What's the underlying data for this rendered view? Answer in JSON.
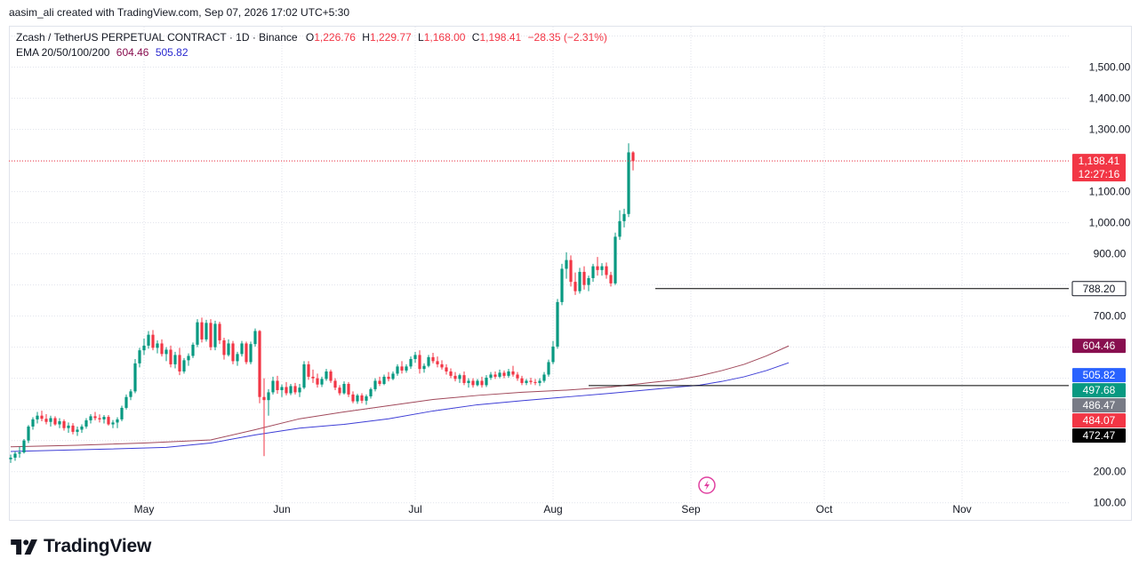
{
  "header": {
    "credit": "aasim_ali created with TradingView.com, Sep 07, 2026 17:02 UTC+5:30"
  },
  "legend": {
    "symbol": "Zcash / TetherUS PERPETUAL CONTRACT · 1D · Binance",
    "o_label": "O",
    "o_value": "1,226.76",
    "h_label": "H",
    "h_value": "1,229.77",
    "l_label": "L",
    "l_value": "1,168.00",
    "c_label": "C",
    "c_value": "1,198.41",
    "change": "−28.35 (−2.31%)",
    "ema_label": "EMA 20/50/100/200",
    "ema_val1": "604.46",
    "ema_val2": "505.82"
  },
  "footer": {
    "brand": "TradingView"
  },
  "chart_data": {
    "type": "candlestick",
    "y_ticks": [
      "1,500.00",
      "1,400.00",
      "1,300.00",
      "1,100.00",
      "1,000.00",
      "900.00",
      "700.00",
      "200.00",
      "100.00"
    ],
    "y_tick_values": [
      1500,
      1400,
      1300,
      1100,
      1000,
      900,
      700,
      200,
      100
    ],
    "ylim": [
      45,
      1630
    ],
    "x_ticks": [
      "May",
      "Jun",
      "Jul",
      "Aug",
      "Sep",
      "Oct",
      "Nov"
    ],
    "x_tick_dates": [
      "2026-05-01",
      "2026-06-01",
      "2026-07-01",
      "2026-08-01",
      "2026-09-01",
      "2026-10-01",
      "2026-11-01"
    ],
    "first_date": "2026-04-01",
    "last_price": {
      "value": 1198.41,
      "label": "1,198.41",
      "countdown": "12:27:16",
      "color": "#f23645"
    },
    "horizontal_lines": [
      {
        "value": 788.2,
        "label": "788.20",
        "from_date": "2026-08-24"
      },
      {
        "value": 476.5,
        "label": "",
        "from_date": "2026-08-09"
      }
    ],
    "price_badges": [
      {
        "value": 604.46,
        "label": "604.46",
        "bg": "#880e4f"
      },
      {
        "value": 505.82,
        "label": "505.82",
        "bg": "#2962ff"
      },
      {
        "value": 497.68,
        "label": "497.68",
        "bg": "#089981"
      },
      {
        "value": 486.47,
        "label": "486.47",
        "bg": "#787b86"
      },
      {
        "value": 484.07,
        "label": "484.07",
        "bg": "#f23645"
      },
      {
        "value": 472.47,
        "label": "472.47",
        "bg": "#000000"
      }
    ],
    "colors": {
      "up": "#089981",
      "down": "#f23645",
      "ema_a": "#a0485a",
      "ema_b": "#3d3dd6"
    },
    "series": [
      {
        "name": "Zcash / TetherUS PERPETUAL CONTRACT",
        "ohlc": [
          [
            240,
            255,
            228,
            245
          ],
          [
            245,
            265,
            235,
            258
          ],
          [
            258,
            280,
            245,
            262
          ],
          [
            262,
            305,
            258,
            300
          ],
          [
            300,
            350,
            292,
            345
          ],
          [
            345,
            375,
            335,
            368
          ],
          [
            368,
            392,
            355,
            380
          ],
          [
            380,
            396,
            362,
            370
          ],
          [
            370,
            385,
            352,
            360
          ],
          [
            360,
            380,
            345,
            372
          ],
          [
            372,
            378,
            348,
            352
          ],
          [
            352,
            372,
            340,
            362
          ],
          [
            362,
            368,
            332,
            340
          ],
          [
            340,
            358,
            325,
            348
          ],
          [
            348,
            356,
            320,
            328
          ],
          [
            328,
            345,
            315,
            335
          ],
          [
            335,
            352,
            325,
            345
          ],
          [
            345,
            372,
            338,
            365
          ],
          [
            365,
            385,
            355,
            378
          ],
          [
            378,
            392,
            365,
            372
          ],
          [
            372,
            384,
            358,
            368
          ],
          [
            368,
            382,
            355,
            376
          ],
          [
            376,
            382,
            348,
            352
          ],
          [
            352,
            366,
            340,
            358
          ],
          [
            358,
            375,
            340,
            368
          ],
          [
            368,
            412,
            362,
            405
          ],
          [
            405,
            448,
            400,
            440
          ],
          [
            440,
            465,
            430,
            458
          ],
          [
            458,
            562,
            452,
            548
          ],
          [
            548,
            598,
            535,
            590
          ],
          [
            590,
            628,
            575,
            605
          ],
          [
            605,
            652,
            595,
            640
          ],
          [
            640,
            655,
            590,
            598
          ],
          [
            598,
            622,
            580,
            612
          ],
          [
            612,
            625,
            570,
            578
          ],
          [
            578,
            600,
            555,
            592
          ],
          [
            592,
            605,
            535,
            545
          ],
          [
            545,
            585,
            532,
            575
          ],
          [
            575,
            598,
            510,
            522
          ],
          [
            522,
            565,
            515,
            558
          ],
          [
            558,
            580,
            540,
            572
          ],
          [
            572,
            615,
            565,
            608
          ],
          [
            608,
            690,
            600,
            680
          ],
          [
            680,
            695,
            615,
            625
          ],
          [
            625,
            688,
            618,
            678
          ],
          [
            678,
            690,
            590,
            600
          ],
          [
            600,
            685,
            590,
            675
          ],
          [
            675,
            682,
            610,
            622
          ],
          [
            622,
            630,
            560,
            575
          ],
          [
            575,
            625,
            570,
            612
          ],
          [
            612,
            620,
            545,
            555
          ],
          [
            555,
            585,
            540,
            578
          ],
          [
            578,
            620,
            570,
            612
          ],
          [
            612,
            618,
            545,
            552
          ],
          [
            552,
            618,
            545,
            610
          ],
          [
            610,
            660,
            602,
            652
          ],
          [
            652,
            655,
            420,
            440
          ],
          [
            440,
            500,
            250,
            430
          ],
          [
            430,
            465,
            380,
            455
          ],
          [
            455,
            505,
            448,
            492
          ],
          [
            492,
            508,
            450,
            462
          ],
          [
            462,
            480,
            440,
            472
          ],
          [
            472,
            488,
            445,
            452
          ],
          [
            452,
            482,
            446,
            475
          ],
          [
            475,
            485,
            448,
            455
          ],
          [
            455,
            482,
            440,
            470
          ],
          [
            470,
            555,
            465,
            545
          ],
          [
            545,
            555,
            495,
            505
          ],
          [
            505,
            528,
            485,
            500
          ],
          [
            500,
            515,
            470,
            480
          ],
          [
            480,
            505,
            472,
            498
          ],
          [
            498,
            530,
            492,
            522
          ],
          [
            522,
            528,
            485,
            492
          ],
          [
            492,
            500,
            462,
            470
          ],
          [
            470,
            478,
            445,
            452
          ],
          [
            452,
            490,
            448,
            482
          ],
          [
            482,
            488,
            440,
            448
          ],
          [
            448,
            458,
            420,
            426
          ],
          [
            426,
            450,
            418,
            445
          ],
          [
            445,
            452,
            420,
            428
          ],
          [
            428,
            448,
            415,
            442
          ],
          [
            442,
            470,
            435,
            465
          ],
          [
            465,
            500,
            458,
            492
          ],
          [
            492,
            505,
            475,
            482
          ],
          [
            482,
            512,
            478,
            505
          ],
          [
            505,
            520,
            490,
            498
          ],
          [
            498,
            522,
            494,
            515
          ],
          [
            515,
            545,
            508,
            538
          ],
          [
            538,
            555,
            515,
            525
          ],
          [
            525,
            545,
            518,
            538
          ],
          [
            538,
            570,
            530,
            562
          ],
          [
            562,
            585,
            550,
            575
          ],
          [
            575,
            590,
            515,
            530
          ],
          [
            530,
            548,
            518,
            540
          ],
          [
            540,
            575,
            535,
            568
          ],
          [
            568,
            582,
            548,
            555
          ],
          [
            555,
            570,
            535,
            545
          ],
          [
            545,
            558,
            528,
            535
          ],
          [
            535,
            545,
            512,
            522
          ],
          [
            522,
            532,
            500,
            508
          ],
          [
            508,
            520,
            490,
            498
          ],
          [
            498,
            515,
            485,
            510
          ],
          [
            510,
            522,
            478,
            485
          ],
          [
            485,
            500,
            470,
            492
          ],
          [
            492,
            500,
            470,
            478
          ],
          [
            478,
            498,
            474,
            492
          ],
          [
            492,
            505,
            470,
            478
          ],
          [
            478,
            510,
            472,
            502
          ],
          [
            502,
            520,
            495,
            512
          ],
          [
            512,
            522,
            498,
            505
          ],
          [
            505,
            528,
            500,
            518
          ],
          [
            518,
            525,
            500,
            508
          ],
          [
            508,
            530,
            502,
            522
          ],
          [
            522,
            540,
            505,
            512
          ],
          [
            512,
            520,
            492,
            500
          ],
          [
            500,
            508,
            478,
            485
          ],
          [
            485,
            498,
            478,
            492
          ],
          [
            492,
            502,
            480,
            488
          ],
          [
            488,
            498,
            478,
            485
          ],
          [
            485,
            500,
            475,
            492
          ],
          [
            492,
            520,
            486,
            512
          ],
          [
            512,
            560,
            505,
            552
          ],
          [
            552,
            620,
            545,
            602
          ],
          [
            602,
            755,
            595,
            745
          ],
          [
            745,
            868,
            735,
            852
          ],
          [
            852,
            905,
            820,
            880
          ],
          [
            880,
            895,
            795,
            810
          ],
          [
            810,
            840,
            768,
            780
          ],
          [
            780,
            855,
            772,
            842
          ],
          [
            842,
            860,
            785,
            800
          ],
          [
            800,
            830,
            780,
            822
          ],
          [
            822,
            868,
            810,
            860
          ],
          [
            860,
            890,
            830,
            848
          ],
          [
            848,
            870,
            830,
            860
          ],
          [
            860,
            872,
            820,
            832
          ],
          [
            832,
            842,
            795,
            805
          ],
          [
            805,
            968,
            800,
            955
          ],
          [
            955,
            1040,
            945,
            1005
          ],
          [
            1005,
            1045,
            985,
            1028
          ],
          [
            1028,
            1255,
            1018,
            1226
          ],
          [
            1226,
            1230,
            1168,
            1198
          ]
        ]
      },
      {
        "name": "EMA 100",
        "values": [
          [
            0,
            280
          ],
          [
            15,
            285
          ],
          [
            30,
            292
          ],
          [
            45,
            302
          ],
          [
            55,
            335
          ],
          [
            65,
            370
          ],
          [
            75,
            392
          ],
          [
            85,
            412
          ],
          [
            95,
            432
          ],
          [
            105,
            445
          ],
          [
            115,
            455
          ],
          [
            125,
            462
          ],
          [
            135,
            472
          ],
          [
            145,
            488
          ],
          [
            150,
            495
          ],
          [
            155,
            508
          ],
          [
            160,
            525
          ],
          [
            165,
            545
          ],
          [
            170,
            572
          ],
          [
            175,
            604
          ]
        ]
      },
      {
        "name": "EMA 200",
        "values": [
          [
            0,
            265
          ],
          [
            20,
            272
          ],
          [
            35,
            278
          ],
          [
            45,
            292
          ],
          [
            55,
            318
          ],
          [
            65,
            340
          ],
          [
            75,
            352
          ],
          [
            85,
            370
          ],
          [
            95,
            395
          ],
          [
            105,
            415
          ],
          [
            115,
            428
          ],
          [
            125,
            440
          ],
          [
            135,
            452
          ],
          [
            145,
            465
          ],
          [
            150,
            472
          ],
          [
            155,
            478
          ],
          [
            160,
            490
          ],
          [
            165,
            505
          ],
          [
            170,
            525
          ],
          [
            175,
            550
          ]
        ]
      }
    ]
  }
}
